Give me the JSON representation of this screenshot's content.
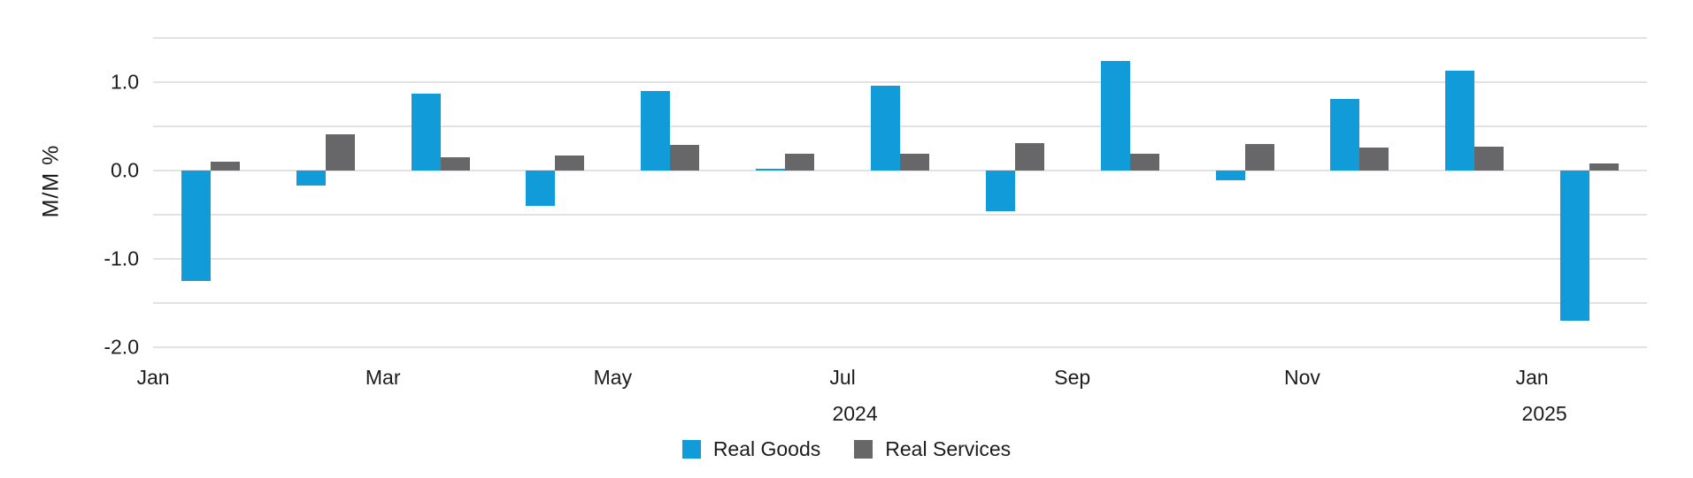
{
  "chart_data": {
    "type": "bar",
    "title": "",
    "ylabel": "M/M %",
    "xlabel": "",
    "categories": [
      "Jan 2024",
      "Feb 2024",
      "Mar 2024",
      "Apr 2024",
      "May 2024",
      "Jun 2024",
      "Jul 2024",
      "Aug 2024",
      "Sep 2024",
      "Oct 2024",
      "Nov 2024",
      "Dec 2024",
      "Jan 2025"
    ],
    "series": [
      {
        "name": "Real Goods",
        "color": "#119cd9",
        "values": [
          -1.25,
          -0.17,
          0.87,
          -0.4,
          0.9,
          0.02,
          0.96,
          -0.46,
          1.24,
          -0.11,
          0.81,
          1.13,
          -1.7
        ]
      },
      {
        "name": "Real Services",
        "color": "#67676a",
        "values": [
          0.1,
          0.41,
          0.15,
          0.17,
          0.29,
          0.19,
          0.19,
          0.31,
          0.19,
          0.3,
          0.26,
          0.27,
          0.08
        ]
      }
    ],
    "ylim": [
      -2.0,
      1.5
    ],
    "gridline_step": 0.5,
    "grid": true,
    "y_ticks": [
      {
        "label": "1.0",
        "value": 1.0
      },
      {
        "label": "0.0",
        "value": 0.0
      },
      {
        "label": "-1.0",
        "value": -1.0
      },
      {
        "label": "-2.0",
        "value": -2.0
      }
    ],
    "x_ticks": [
      {
        "label": "Jan",
        "index": 0
      },
      {
        "label": "Mar",
        "index": 2
      },
      {
        "label": "May",
        "index": 4
      },
      {
        "label": "Jul",
        "index": 6
      },
      {
        "label": "Sep",
        "index": 8
      },
      {
        "label": "Nov",
        "index": 10
      },
      {
        "label": "Jan",
        "index": 12
      }
    ],
    "x_year_labels": [
      {
        "label": "2024",
        "index": 6
      },
      {
        "label": "2025",
        "index": 12
      }
    ],
    "legend_position": "bottom-center"
  },
  "colors": {
    "goods": "#119cd9",
    "services": "#67676a",
    "gridline": "#e2e2e4",
    "text": "#1c1c1e",
    "background": "#ffffff"
  }
}
